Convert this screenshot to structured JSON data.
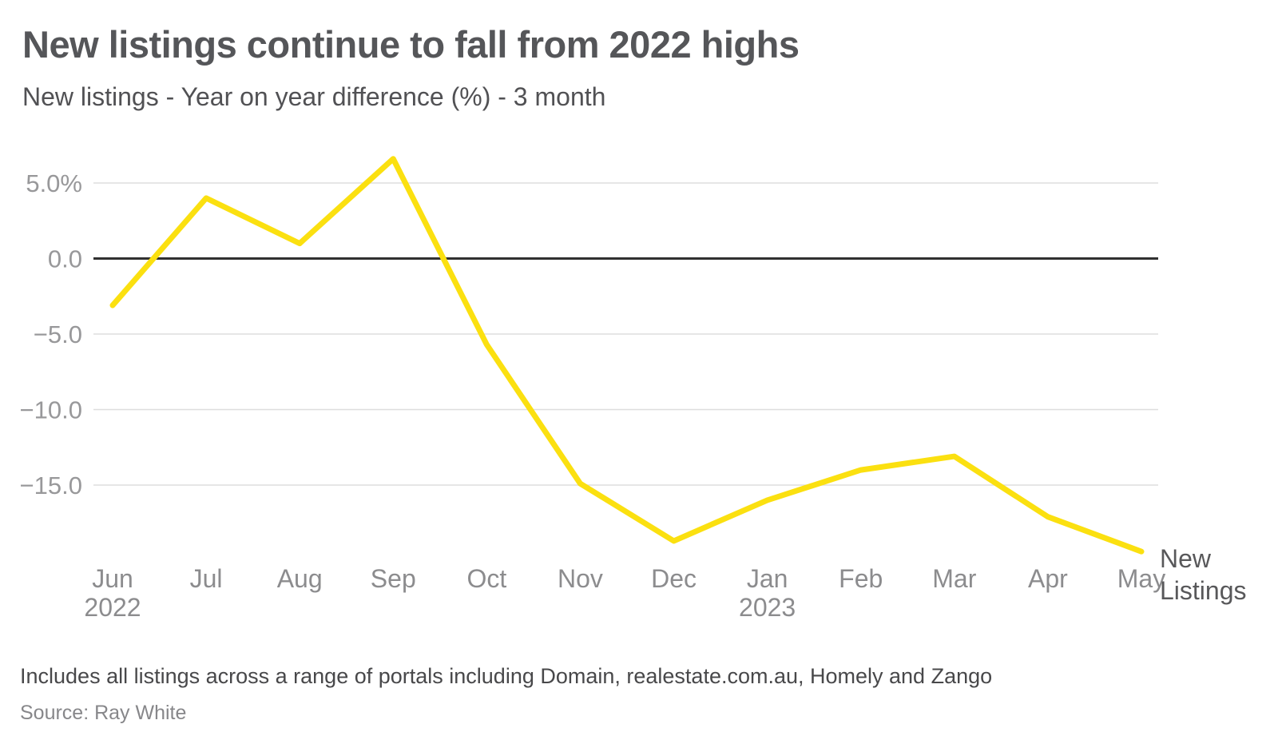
{
  "header": {
    "title": "New listings continue to fall from 2022 highs",
    "subtitle": "New listings - Year on year difference (%) - 3 month"
  },
  "footer": {
    "note": "Includes all listings across a range of portals including Domain, realestate.com.au, Homely and Zango",
    "source": "Source: Ray White"
  },
  "chart_data": {
    "type": "line",
    "title": "New listings continue to fall from 2022 highs",
    "subtitle": "New listings - Year on year difference (%) - 3 month",
    "categories": [
      "Jun",
      "Jul",
      "Aug",
      "Sep",
      "Oct",
      "Nov",
      "Dec",
      "Jan",
      "Feb",
      "Mar",
      "Apr",
      "May"
    ],
    "year_markers": [
      {
        "index": 0,
        "label": "2022"
      },
      {
        "index": 7,
        "label": "2023"
      }
    ],
    "series": [
      {
        "name": "New Listings",
        "values": [
          -3.1,
          4.0,
          1.0,
          6.6,
          -5.7,
          -14.9,
          -18.7,
          -16.0,
          -14.0,
          -13.1,
          -17.1,
          -19.4
        ]
      }
    ],
    "end_label_lines": [
      "New",
      "Listings"
    ],
    "y_ticks": [
      {
        "value": 5,
        "label": "5.0%"
      },
      {
        "value": 0,
        "label": "0.0"
      },
      {
        "value": -5,
        "label": "−5.0"
      },
      {
        "value": -10,
        "label": "−10.0"
      },
      {
        "value": -15,
        "label": "−15.0"
      }
    ],
    "ylim": [
      -21,
      8
    ],
    "grid": true,
    "legend_position": "end-of-line",
    "colors": {
      "line": "#FBE010",
      "zero_line": "#303030",
      "gridline": "#DEDEDE",
      "tick_label": "#98989A",
      "month_label": "#8C8C8E",
      "end_label": "#58585A"
    }
  }
}
